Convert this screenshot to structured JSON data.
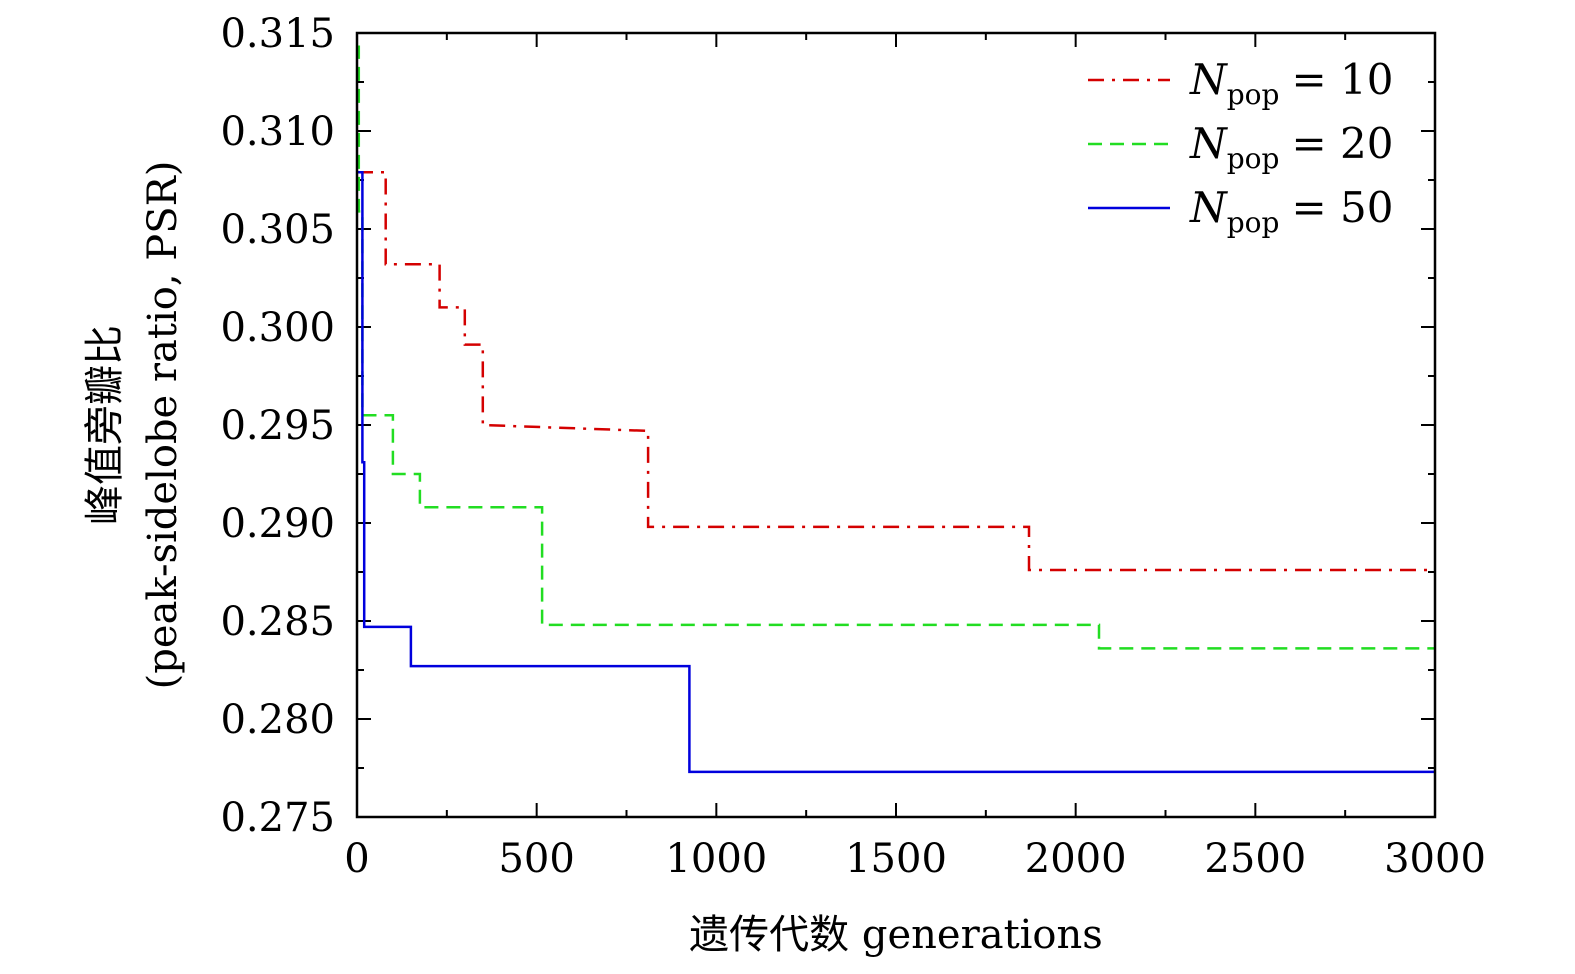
{
  "chart_data": {
    "type": "line",
    "step": true,
    "xlabel": "遗传代数 generations",
    "ylabel_line1": "峰值旁瓣比",
    "ylabel_line2": "(peak-sidelobe ratio, PSR)",
    "xlim": [
      0,
      3000
    ],
    "ylim": [
      0.275,
      0.315
    ],
    "x_ticks": [
      0,
      500,
      1000,
      1500,
      2000,
      2500,
      3000
    ],
    "x_tick_labels": [
      "0",
      "500",
      "1000",
      "1500",
      "2000",
      "2500",
      "3000"
    ],
    "y_ticks": [
      0.275,
      0.28,
      0.285,
      0.29,
      0.295,
      0.3,
      0.305,
      0.31,
      0.315
    ],
    "y_tick_labels": [
      "0.275",
      "0.280",
      "0.285",
      "0.290",
      "0.295",
      "0.300",
      "0.305",
      "0.310",
      "0.315"
    ],
    "grid": false,
    "legend_position": "top-right",
    "series": [
      {
        "name": "N_pop = 10",
        "label_sym": "N",
        "label_sub": "pop",
        "label_val": "= 10",
        "color": "#d40000",
        "dash": "16,8,3,8",
        "x": [
          0,
          80,
          80,
          230,
          230,
          300,
          300,
          350,
          350,
          810,
          810,
          1870,
          1870,
          3000
        ],
        "y": [
          0.3079,
          0.3079,
          0.3032,
          0.3032,
          0.301,
          0.301,
          0.2991,
          0.2991,
          0.295,
          0.2947,
          0.2898,
          0.2898,
          0.2876,
          0.2876
        ]
      },
      {
        "name": "N_pop = 20",
        "label_sym": "N",
        "label_sub": "pop",
        "label_val": "= 20",
        "color": "#22dd22",
        "dash": "14,8",
        "x": [
          0,
          5,
          5,
          15,
          15,
          25,
          25,
          100,
          100,
          175,
          175,
          515,
          515,
          2065,
          2065,
          3000
        ],
        "y": [
          0.3143,
          0.3143,
          0.3059,
          0.3059,
          0.2955,
          0.2955,
          0.2955,
          0.2955,
          0.2925,
          0.2925,
          0.2908,
          0.2908,
          0.2848,
          0.2848,
          0.2836,
          0.2836
        ]
      },
      {
        "name": "N_pop = 50",
        "label_sym": "N",
        "label_sub": "pop",
        "label_val": "= 50",
        "color": "#0000dd",
        "dash": "",
        "x": [
          0,
          15,
          15,
          20,
          20,
          150,
          150,
          925,
          925,
          3000
        ],
        "y": [
          0.3079,
          0.3079,
          0.2931,
          0.2931,
          0.2847,
          0.2847,
          0.2827,
          0.2827,
          0.2773,
          0.2773
        ]
      }
    ]
  }
}
